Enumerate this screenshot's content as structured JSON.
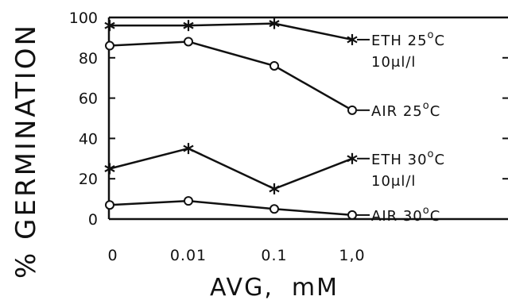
{
  "chart_data": {
    "type": "line",
    "xlabel": "AVG,  mM",
    "ylabel": "% GERMINATION",
    "ylim": [
      0,
      100
    ],
    "y_ticks": [
      "0",
      "20",
      "40",
      "60",
      "80",
      "100"
    ],
    "categories": [
      "0",
      "0.01",
      "0.1",
      "1.0"
    ],
    "x_tick_labels": [
      "0",
      "0.01",
      "0.1",
      "1,0"
    ],
    "series": [
      {
        "label": "ETH 25°C",
        "sublabel": "10μl/l",
        "marker": "star",
        "values": [
          96,
          96,
          97,
          89
        ]
      },
      {
        "label": "AIR 25°C",
        "sublabel": "",
        "marker": "circle",
        "values": [
          86,
          88,
          76,
          54
        ]
      },
      {
        "label": "ETH 30°C",
        "sublabel": "10μl/l",
        "marker": "star",
        "values": [
          25,
          35,
          15,
          30
        ]
      },
      {
        "label": "AIR 30°C",
        "sublabel": "",
        "marker": "circle",
        "values": [
          7,
          9,
          5,
          2
        ]
      }
    ],
    "series_labels": [
      {
        "name": "ETH",
        "temp": "25",
        "unit": "C",
        "sub": "10μl/l"
      },
      {
        "name": "AIR",
        "temp": "25",
        "unit": "C",
        "sub": ""
      },
      {
        "name": "ETH",
        "temp": "30",
        "unit": "C",
        "sub": "10μl/l"
      },
      {
        "name": "AIR",
        "temp": "30",
        "unit": "C",
        "sub": ""
      }
    ],
    "degree_symbol": "o"
  }
}
